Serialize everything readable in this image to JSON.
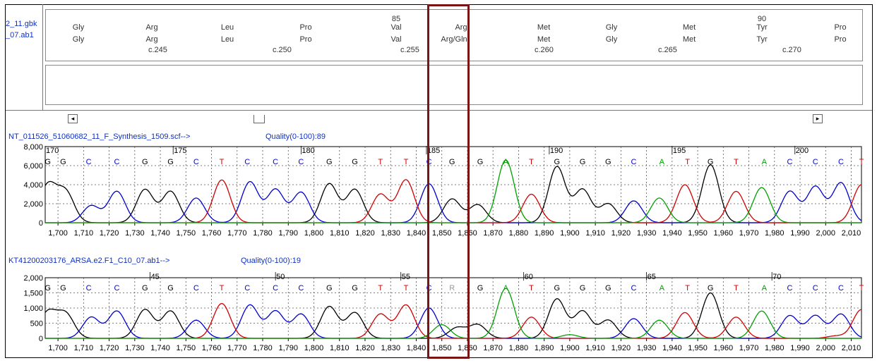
{
  "files": [
    "2_11.gbk",
    "_07.ab1"
  ],
  "codons": [
    {
      "ref": "Gly",
      "sample": "Gly"
    },
    {
      "ref": "Arg",
      "sample": "Arg"
    },
    {
      "ref": "Leu",
      "sample": "Leu"
    },
    {
      "ref": "Pro",
      "sample": "Pro"
    },
    {
      "ref": "Val",
      "sample": "Val",
      "number": "85"
    },
    {
      "ref": "Arg",
      "sample": "Arg/Gln"
    },
    {
      "ref": "Met",
      "sample": "Met"
    },
    {
      "ref": "Gly",
      "sample": "Gly"
    },
    {
      "ref": "Met",
      "sample": "Met"
    },
    {
      "ref": "Tyr",
      "sample": "Tyr",
      "number": "90"
    },
    {
      "ref": "Pro",
      "sample": "Pro"
    }
  ],
  "cdna_positions": [
    "c.245",
    "c.250",
    "c.255",
    "c.260",
    "c.265",
    "c.270"
  ],
  "scroll": {
    "left_arrow": "◂",
    "right_arrow": "▸"
  },
  "track1": {
    "name": "NT_011526_51060682_11_F_Synthesis_1509.scf-->",
    "quality": "Quality(0-100):89"
  },
  "track2": {
    "name": "KT41200203176_ARSA.e2.F1_C10_07.ab1-->",
    "quality": "Quality(0-100):19"
  },
  "colors": {
    "A": "#00a000",
    "C": "#0000d0",
    "G": "#000000",
    "T": "#d00000",
    "N": "#999999",
    "highlight": "#7a1515"
  },
  "chart_data": [
    {
      "type": "line",
      "title": "",
      "ylim": [
        0,
        8000
      ],
      "y_ticks": [
        "8,000",
        "6,000",
        "4,000",
        "2,000",
        "0"
      ],
      "x_ticks": [
        "1,700",
        "1,710",
        "1,720",
        "1,730",
        "1,740",
        "1,750",
        "1,760",
        "1,770",
        "1,780",
        "1,790",
        "1,800",
        "1,810",
        "1,820",
        "1,830",
        "1,840",
        "1,850",
        "1,860",
        "1,870",
        "1,880",
        "1,890",
        "1,900",
        "1,910",
        "1,920",
        "1,930",
        "1,940",
        "1,950",
        "1,960",
        "1,970",
        "1,980",
        "1,990",
        "2,000",
        "2,010"
      ],
      "x_range": [
        1695,
        2014
      ],
      "base_numbers": [
        {
          "label": "170",
          "x": 1695
        },
        {
          "label": "175",
          "x": 1745
        },
        {
          "label": "180",
          "x": 1795
        },
        {
          "label": "185",
          "x": 1844
        },
        {
          "label": "190",
          "x": 1892
        },
        {
          "label": "195",
          "x": 1940
        },
        {
          "label": "200",
          "x": 1988
        }
      ],
      "bases": [
        "G",
        "G",
        "C",
        "C",
        "G",
        "G",
        "C",
        "T",
        "C",
        "C",
        "C",
        "G",
        "G",
        "T",
        "T",
        "C",
        "G",
        "G",
        "A",
        "T",
        "G",
        "G",
        "G",
        "C",
        "A",
        "T",
        "G",
        "T",
        "A",
        "C",
        "C",
        "C",
        "T"
      ],
      "base_x": [
        1696,
        1702,
        1712,
        1723,
        1734,
        1744,
        1754,
        1764,
        1774,
        1785,
        1795,
        1806,
        1816,
        1826,
        1836,
        1845,
        1854,
        1865,
        1875,
        1885,
        1895,
        1905,
        1915,
        1925,
        1936,
        1946,
        1955,
        1965,
        1976,
        1986,
        1996,
        2006,
        2014
      ],
      "peaks": [
        {
          "base": "G",
          "x": 1696,
          "h": 3900
        },
        {
          "base": "G",
          "x": 1703,
          "h": 3200
        },
        {
          "base": "C",
          "x": 1713,
          "h": 1800
        },
        {
          "base": "C",
          "x": 1723,
          "h": 3300
        },
        {
          "base": "G",
          "x": 1734,
          "h": 3500
        },
        {
          "base": "G",
          "x": 1744,
          "h": 3300
        },
        {
          "base": "C",
          "x": 1754,
          "h": 2600
        },
        {
          "base": "T",
          "x": 1764,
          "h": 4500
        },
        {
          "base": "C",
          "x": 1775,
          "h": 4300
        },
        {
          "base": "C",
          "x": 1785,
          "h": 3500
        },
        {
          "base": "C",
          "x": 1795,
          "h": 3200
        },
        {
          "base": "G",
          "x": 1806,
          "h": 4100
        },
        {
          "base": "G",
          "x": 1816,
          "h": 3500
        },
        {
          "base": "T",
          "x": 1826,
          "h": 3000
        },
        {
          "base": "T",
          "x": 1836,
          "h": 4500
        },
        {
          "base": "C",
          "x": 1845,
          "h": 4100
        },
        {
          "base": "G",
          "x": 1854,
          "h": 2500
        },
        {
          "base": "G",
          "x": 1864,
          "h": 1900
        },
        {
          "base": "A",
          "x": 1875,
          "h": 6600
        },
        {
          "base": "T",
          "x": 1885,
          "h": 3000
        },
        {
          "base": "G",
          "x": 1895,
          "h": 5900
        },
        {
          "base": "G",
          "x": 1905,
          "h": 3500
        },
        {
          "base": "G",
          "x": 1915,
          "h": 2000
        },
        {
          "base": "C",
          "x": 1925,
          "h": 2300
        },
        {
          "base": "A",
          "x": 1935,
          "h": 2600
        },
        {
          "base": "T",
          "x": 1945,
          "h": 4000
        },
        {
          "base": "G",
          "x": 1955,
          "h": 6100
        },
        {
          "base": "T",
          "x": 1965,
          "h": 3300
        },
        {
          "base": "A",
          "x": 1975,
          "h": 3700
        },
        {
          "base": "C",
          "x": 1986,
          "h": 3300
        },
        {
          "base": "C",
          "x": 1996,
          "h": 3800
        },
        {
          "base": "C",
          "x": 2006,
          "h": 4200
        },
        {
          "base": "T",
          "x": 2014,
          "h": 4000
        }
      ]
    },
    {
      "type": "line",
      "title": "",
      "ylim": [
        0,
        2000
      ],
      "y_ticks": [
        "2,000",
        "1,500",
        "1,000",
        "500",
        "0"
      ],
      "x_ticks": [
        "1,700",
        "1,710",
        "1,720",
        "1,730",
        "1,740",
        "1,750",
        "1,760",
        "1,770",
        "1,780",
        "1,790",
        "1,800",
        "1,810",
        "1,820",
        "1,830",
        "1,840",
        "1,850",
        "1,860",
        "1,870",
        "1,880",
        "1,890",
        "1,900",
        "1,910",
        "1,920",
        "1,930",
        "1,940",
        "1,950",
        "1,960",
        "1,970",
        "1,980",
        "1,990",
        "2,000",
        "2,010"
      ],
      "x_range": [
        1695,
        2014
      ],
      "base_numbers": [
        {
          "label": "45",
          "x": 1736
        },
        {
          "label": "50",
          "x": 1785
        },
        {
          "label": "55",
          "x": 1834
        },
        {
          "label": "60",
          "x": 1882
        },
        {
          "label": "65",
          "x": 1930
        },
        {
          "label": "70",
          "x": 1979
        }
      ],
      "bases": [
        "G",
        "G",
        "C",
        "C",
        "G",
        "G",
        "C",
        "T",
        "C",
        "C",
        "C",
        "G",
        "G",
        "T",
        "T",
        "C",
        "R",
        "G",
        "A",
        "T",
        "G",
        "G",
        "G",
        "C",
        "A",
        "T",
        "G",
        "T",
        "A",
        "C",
        "C",
        "C",
        "T"
      ],
      "base_x": [
        1696,
        1702,
        1712,
        1723,
        1734,
        1744,
        1754,
        1764,
        1774,
        1785,
        1795,
        1806,
        1816,
        1826,
        1836,
        1845,
        1854,
        1865,
        1875,
        1885,
        1895,
        1905,
        1915,
        1925,
        1936,
        1946,
        1955,
        1965,
        1976,
        1986,
        1996,
        2006,
        2014
      ],
      "peaks": [
        {
          "base": "G",
          "x": 1696,
          "h": 850
        },
        {
          "base": "G",
          "x": 1703,
          "h": 800
        },
        {
          "base": "C",
          "x": 1713,
          "h": 700
        },
        {
          "base": "C",
          "x": 1723,
          "h": 900
        },
        {
          "base": "G",
          "x": 1734,
          "h": 950
        },
        {
          "base": "G",
          "x": 1744,
          "h": 900
        },
        {
          "base": "C",
          "x": 1754,
          "h": 600
        },
        {
          "base": "T",
          "x": 1764,
          "h": 1150
        },
        {
          "base": "C",
          "x": 1775,
          "h": 1100
        },
        {
          "base": "C",
          "x": 1785,
          "h": 900
        },
        {
          "base": "C",
          "x": 1795,
          "h": 800
        },
        {
          "base": "G",
          "x": 1806,
          "h": 1050
        },
        {
          "base": "G",
          "x": 1816,
          "h": 850
        },
        {
          "base": "T",
          "x": 1826,
          "h": 800
        },
        {
          "base": "T",
          "x": 1836,
          "h": 1100
        },
        {
          "base": "C",
          "x": 1845,
          "h": 1000
        },
        {
          "base": "A",
          "x": 1850,
          "h": 450
        },
        {
          "base": "G",
          "x": 1856,
          "h": 350
        },
        {
          "base": "G",
          "x": 1864,
          "h": 450
        },
        {
          "base": "A",
          "x": 1875,
          "h": 1650
        },
        {
          "base": "T",
          "x": 1885,
          "h": 700
        },
        {
          "base": "G",
          "x": 1895,
          "h": 1300
        },
        {
          "base": "A",
          "x": 1900,
          "h": 120
        },
        {
          "base": "G",
          "x": 1905,
          "h": 900
        },
        {
          "base": "G",
          "x": 1915,
          "h": 600
        },
        {
          "base": "C",
          "x": 1925,
          "h": 650
        },
        {
          "base": "A",
          "x": 1935,
          "h": 600
        },
        {
          "base": "T",
          "x": 1945,
          "h": 850
        },
        {
          "base": "G",
          "x": 1955,
          "h": 1500
        },
        {
          "base": "T",
          "x": 1965,
          "h": 700
        },
        {
          "base": "A",
          "x": 1975,
          "h": 900
        },
        {
          "base": "C",
          "x": 1986,
          "h": 750
        },
        {
          "base": "C",
          "x": 1996,
          "h": 750
        },
        {
          "base": "T",
          "x": 2004,
          "h": 80
        },
        {
          "base": "C",
          "x": 2006,
          "h": 800
        },
        {
          "base": "T",
          "x": 2014,
          "h": 950
        }
      ]
    }
  ]
}
